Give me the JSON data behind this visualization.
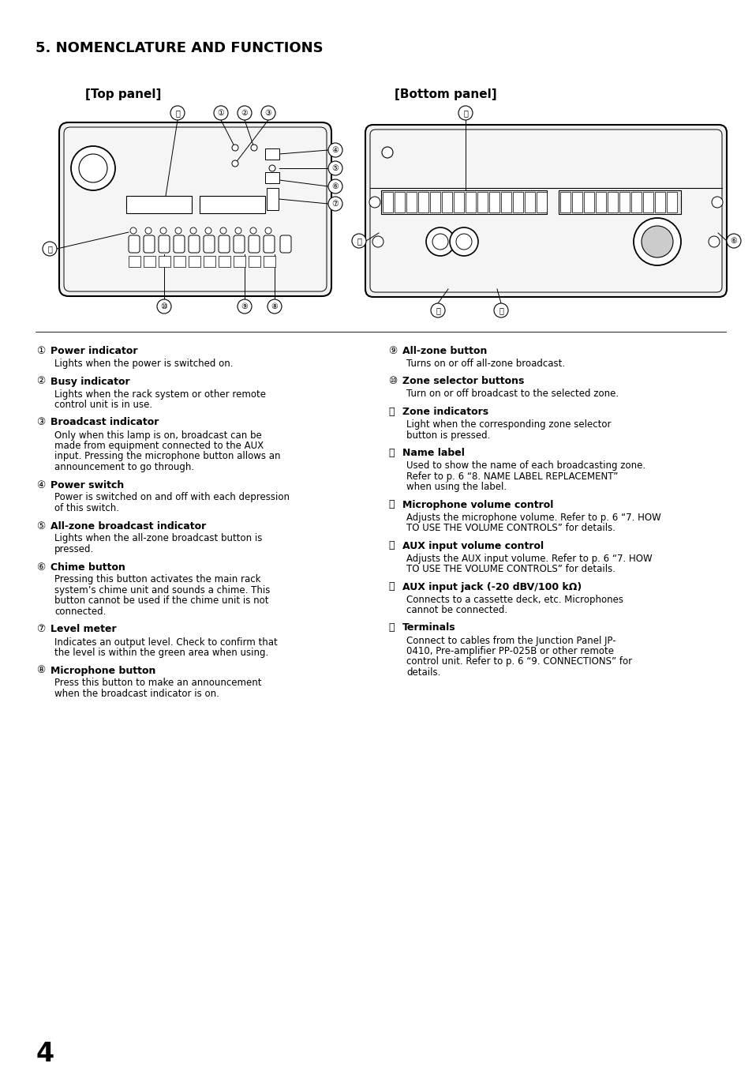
{
  "title": "5. NOMENCLATURE AND FUNCTIONS",
  "top_panel_label": "[Top panel]",
  "bottom_panel_label": "[Bottom panel]",
  "page_number": "4",
  "bg_color": "#ffffff",
  "text_color": "#000000",
  "items_left": [
    {
      "num": "①",
      "heading": "Power indicator",
      "body": "Lights when the power is switched on."
    },
    {
      "num": "②",
      "heading": "Busy indicator",
      "body": "Lights when the rack system or other remote\ncontrol unit is in use."
    },
    {
      "num": "③",
      "heading": "Broadcast indicator",
      "body": "Only when this lamp is on, broadcast can be\nmade from equipment connected to the AUX\ninput. Pressing the microphone button allows an\nannouncement to go through."
    },
    {
      "num": "④",
      "heading": "Power switch",
      "body": "Power is switched on and off with each depression\nof this switch."
    },
    {
      "num": "⑤",
      "heading": "All-zone broadcast indicator",
      "body": "Lights when the all-zone broadcast button is\npressed."
    },
    {
      "num": "⑥",
      "heading": "Chime button",
      "body": "Pressing this button activates the main rack\nsystem’s chime unit and sounds a chime. This\nbutton cannot be used if the chime unit is not\nconnected."
    },
    {
      "num": "⑦",
      "heading": "Level meter",
      "body": "Indicates an output level. Check to confirm that\nthe level is within the green area when using."
    },
    {
      "num": "⑧",
      "heading": "Microphone button",
      "body": "Press this button to make an announcement\nwhen the broadcast indicator is on."
    }
  ],
  "items_right": [
    {
      "num": "⑨",
      "heading": "All-zone button",
      "body": "Turns on or off all-zone broadcast."
    },
    {
      "num": "⑩",
      "heading": "Zone selector buttons",
      "body": "Turn on or off broadcast to the selected zone."
    },
    {
      "num": "⑪",
      "heading": "Zone indicators",
      "body": "Light when the corresponding zone selector\nbutton is pressed."
    },
    {
      "num": "⑫",
      "heading": "Name label",
      "body": "Used to show the name of each broadcasting zone.\nRefer to p. 6 “8. NAME LABEL REPLACEMENT”\nwhen using the label."
    },
    {
      "num": "⑬",
      "heading": "Microphone volume control",
      "body": "Adjusts the microphone volume. Refer to p. 6 “7. HOW\nTO USE THE VOLUME CONTROLS” for details."
    },
    {
      "num": "⑭",
      "heading": "AUX input volume control",
      "body": "Adjusts the AUX input volume. Refer to p. 6 “7. HOW\nTO USE THE VOLUME CONTROLS” for details."
    },
    {
      "num": "⑮",
      "heading": "AUX input jack (-20 dBV/100 kΩ)",
      "body": "Connects to a cassette deck, etc. Microphones\ncannot be connected."
    },
    {
      "num": "⑯",
      "heading": "Terminals",
      "body": "Connect to cables from the Junction Panel JP-\n0410, Pre-amplifier PP-025B or other remote\ncontrol unit. Refer to p. 6 “9. CONNECTIONS” for\ndetails."
    }
  ]
}
